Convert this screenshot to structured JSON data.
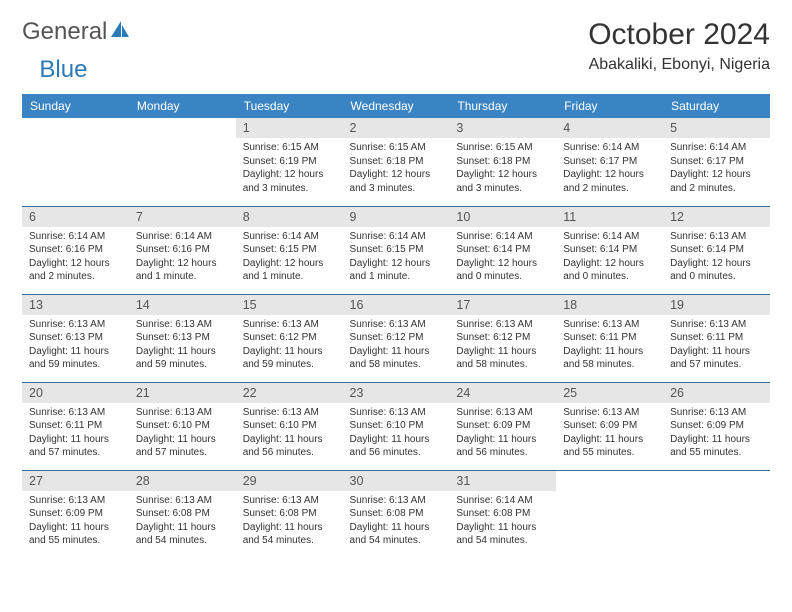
{
  "logo": {
    "part1": "General",
    "part2": "Blue",
    "icon_color": "#2a7ab8"
  },
  "title": "October 2024",
  "location": "Abakaliki, Ebonyi, Nigeria",
  "daynames": [
    "Sunday",
    "Monday",
    "Tuesday",
    "Wednesday",
    "Thursday",
    "Friday",
    "Saturday"
  ],
  "colors": {
    "header_bg": "#3a84c3",
    "header_text": "#ffffff",
    "daynum_bg": "#e6e6e6",
    "border": "#3a6a9c",
    "text": "#333333"
  },
  "weeks": [
    [
      {
        "num": "",
        "text": "",
        "empty": true
      },
      {
        "num": "",
        "text": "",
        "empty": true
      },
      {
        "num": "1",
        "text": "Sunrise: 6:15 AM\nSunset: 6:19 PM\nDaylight: 12 hours and 3 minutes."
      },
      {
        "num": "2",
        "text": "Sunrise: 6:15 AM\nSunset: 6:18 PM\nDaylight: 12 hours and 3 minutes."
      },
      {
        "num": "3",
        "text": "Sunrise: 6:15 AM\nSunset: 6:18 PM\nDaylight: 12 hours and 3 minutes."
      },
      {
        "num": "4",
        "text": "Sunrise: 6:14 AM\nSunset: 6:17 PM\nDaylight: 12 hours and 2 minutes."
      },
      {
        "num": "5",
        "text": "Sunrise: 6:14 AM\nSunset: 6:17 PM\nDaylight: 12 hours and 2 minutes."
      }
    ],
    [
      {
        "num": "6",
        "text": "Sunrise: 6:14 AM\nSunset: 6:16 PM\nDaylight: 12 hours and 2 minutes."
      },
      {
        "num": "7",
        "text": "Sunrise: 6:14 AM\nSunset: 6:16 PM\nDaylight: 12 hours and 1 minute."
      },
      {
        "num": "8",
        "text": "Sunrise: 6:14 AM\nSunset: 6:15 PM\nDaylight: 12 hours and 1 minute."
      },
      {
        "num": "9",
        "text": "Sunrise: 6:14 AM\nSunset: 6:15 PM\nDaylight: 12 hours and 1 minute."
      },
      {
        "num": "10",
        "text": "Sunrise: 6:14 AM\nSunset: 6:14 PM\nDaylight: 12 hours and 0 minutes."
      },
      {
        "num": "11",
        "text": "Sunrise: 6:14 AM\nSunset: 6:14 PM\nDaylight: 12 hours and 0 minutes."
      },
      {
        "num": "12",
        "text": "Sunrise: 6:13 AM\nSunset: 6:14 PM\nDaylight: 12 hours and 0 minutes."
      }
    ],
    [
      {
        "num": "13",
        "text": "Sunrise: 6:13 AM\nSunset: 6:13 PM\nDaylight: 11 hours and 59 minutes."
      },
      {
        "num": "14",
        "text": "Sunrise: 6:13 AM\nSunset: 6:13 PM\nDaylight: 11 hours and 59 minutes."
      },
      {
        "num": "15",
        "text": "Sunrise: 6:13 AM\nSunset: 6:12 PM\nDaylight: 11 hours and 59 minutes."
      },
      {
        "num": "16",
        "text": "Sunrise: 6:13 AM\nSunset: 6:12 PM\nDaylight: 11 hours and 58 minutes."
      },
      {
        "num": "17",
        "text": "Sunrise: 6:13 AM\nSunset: 6:12 PM\nDaylight: 11 hours and 58 minutes."
      },
      {
        "num": "18",
        "text": "Sunrise: 6:13 AM\nSunset: 6:11 PM\nDaylight: 11 hours and 58 minutes."
      },
      {
        "num": "19",
        "text": "Sunrise: 6:13 AM\nSunset: 6:11 PM\nDaylight: 11 hours and 57 minutes."
      }
    ],
    [
      {
        "num": "20",
        "text": "Sunrise: 6:13 AM\nSunset: 6:11 PM\nDaylight: 11 hours and 57 minutes."
      },
      {
        "num": "21",
        "text": "Sunrise: 6:13 AM\nSunset: 6:10 PM\nDaylight: 11 hours and 57 minutes."
      },
      {
        "num": "22",
        "text": "Sunrise: 6:13 AM\nSunset: 6:10 PM\nDaylight: 11 hours and 56 minutes."
      },
      {
        "num": "23",
        "text": "Sunrise: 6:13 AM\nSunset: 6:10 PM\nDaylight: 11 hours and 56 minutes."
      },
      {
        "num": "24",
        "text": "Sunrise: 6:13 AM\nSunset: 6:09 PM\nDaylight: 11 hours and 56 minutes."
      },
      {
        "num": "25",
        "text": "Sunrise: 6:13 AM\nSunset: 6:09 PM\nDaylight: 11 hours and 55 minutes."
      },
      {
        "num": "26",
        "text": "Sunrise: 6:13 AM\nSunset: 6:09 PM\nDaylight: 11 hours and 55 minutes."
      }
    ],
    [
      {
        "num": "27",
        "text": "Sunrise: 6:13 AM\nSunset: 6:09 PM\nDaylight: 11 hours and 55 minutes."
      },
      {
        "num": "28",
        "text": "Sunrise: 6:13 AM\nSunset: 6:08 PM\nDaylight: 11 hours and 54 minutes."
      },
      {
        "num": "29",
        "text": "Sunrise: 6:13 AM\nSunset: 6:08 PM\nDaylight: 11 hours and 54 minutes."
      },
      {
        "num": "30",
        "text": "Sunrise: 6:13 AM\nSunset: 6:08 PM\nDaylight: 11 hours and 54 minutes."
      },
      {
        "num": "31",
        "text": "Sunrise: 6:14 AM\nSunset: 6:08 PM\nDaylight: 11 hours and 54 minutes."
      },
      {
        "num": "",
        "text": "",
        "empty": true
      },
      {
        "num": "",
        "text": "",
        "empty": true
      }
    ]
  ]
}
